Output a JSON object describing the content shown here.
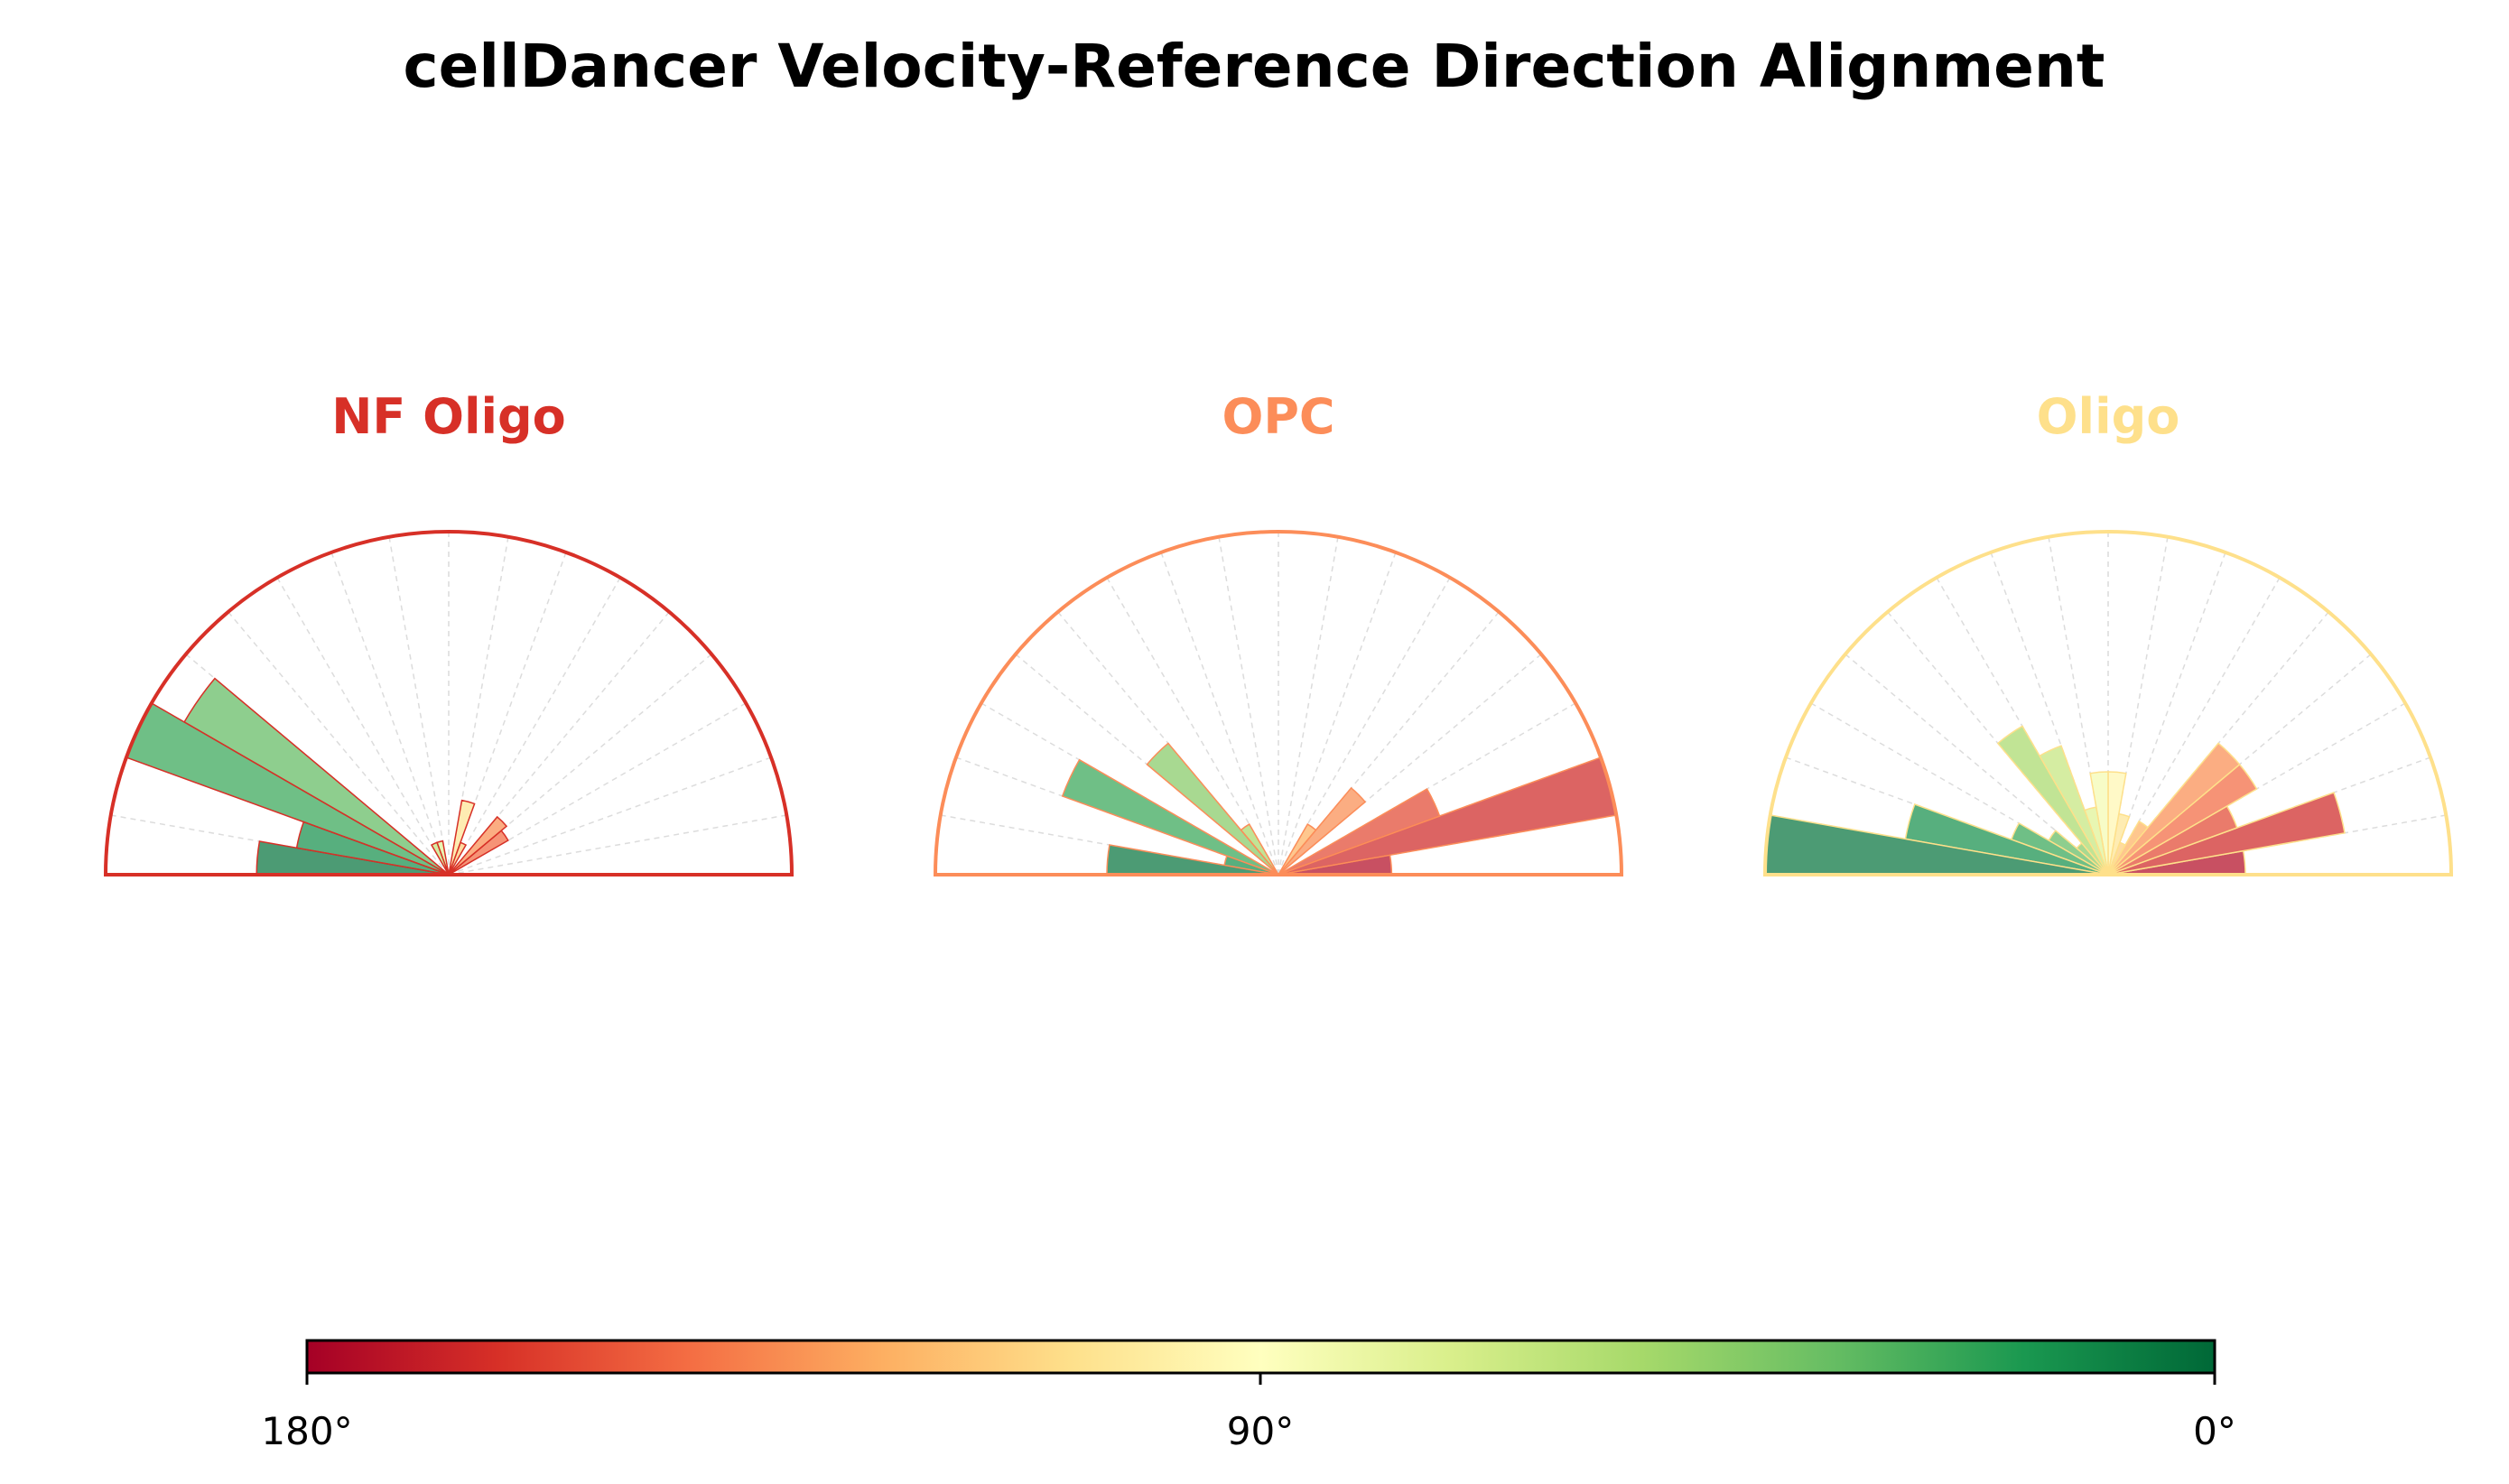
{
  "chart_data": {
    "type": "polar-bar",
    "title": "cellDancer Velocity-Reference Direction Alignment",
    "bin_width_deg": 10,
    "bin_starts_deg": [
      0,
      10,
      20,
      30,
      40,
      50,
      60,
      70,
      80,
      90,
      100,
      110,
      120,
      130,
      140,
      150,
      160,
      170
    ],
    "value_note": "relative bar length (max = 1)",
    "subplots": [
      {
        "name": "NF Oligo",
        "color": "#d73027",
        "values": [
          0,
          0,
          0,
          0.2,
          0.22,
          0,
          0.1,
          0.22,
          0,
          0,
          0.1,
          0.1,
          0,
          0,
          0.89,
          1.0,
          0.45,
          0.56
        ]
      },
      {
        "name": "OPC",
        "color": "#fc8d59",
        "values": [
          0.33,
          1.0,
          0.5,
          0,
          0.33,
          0.17,
          0,
          0,
          0,
          0,
          0,
          0,
          0.17,
          0.5,
          0,
          0.67,
          0.16,
          0.5
        ]
      },
      {
        "name": "Oligo",
        "color": "#fee08b",
        "values": [
          0.4,
          0.7,
          0.4,
          0.5,
          0.5,
          0.18,
          0.1,
          0.18,
          0.3,
          0.3,
          0.2,
          0.4,
          0.5,
          0.12,
          0.2,
          0.3,
          0.6,
          1.0
        ]
      }
    ],
    "colorbar": {
      "colormap": "RdYlGn",
      "stops": [
        "#a50026",
        "#d73027",
        "#f46d43",
        "#fdae61",
        "#fee08b",
        "#ffffbf",
        "#d9ef8b",
        "#a6d96a",
        "#66bd63",
        "#1a9850",
        "#006837"
      ],
      "tick_labels": [
        "180°",
        "90°",
        "0°"
      ]
    }
  }
}
